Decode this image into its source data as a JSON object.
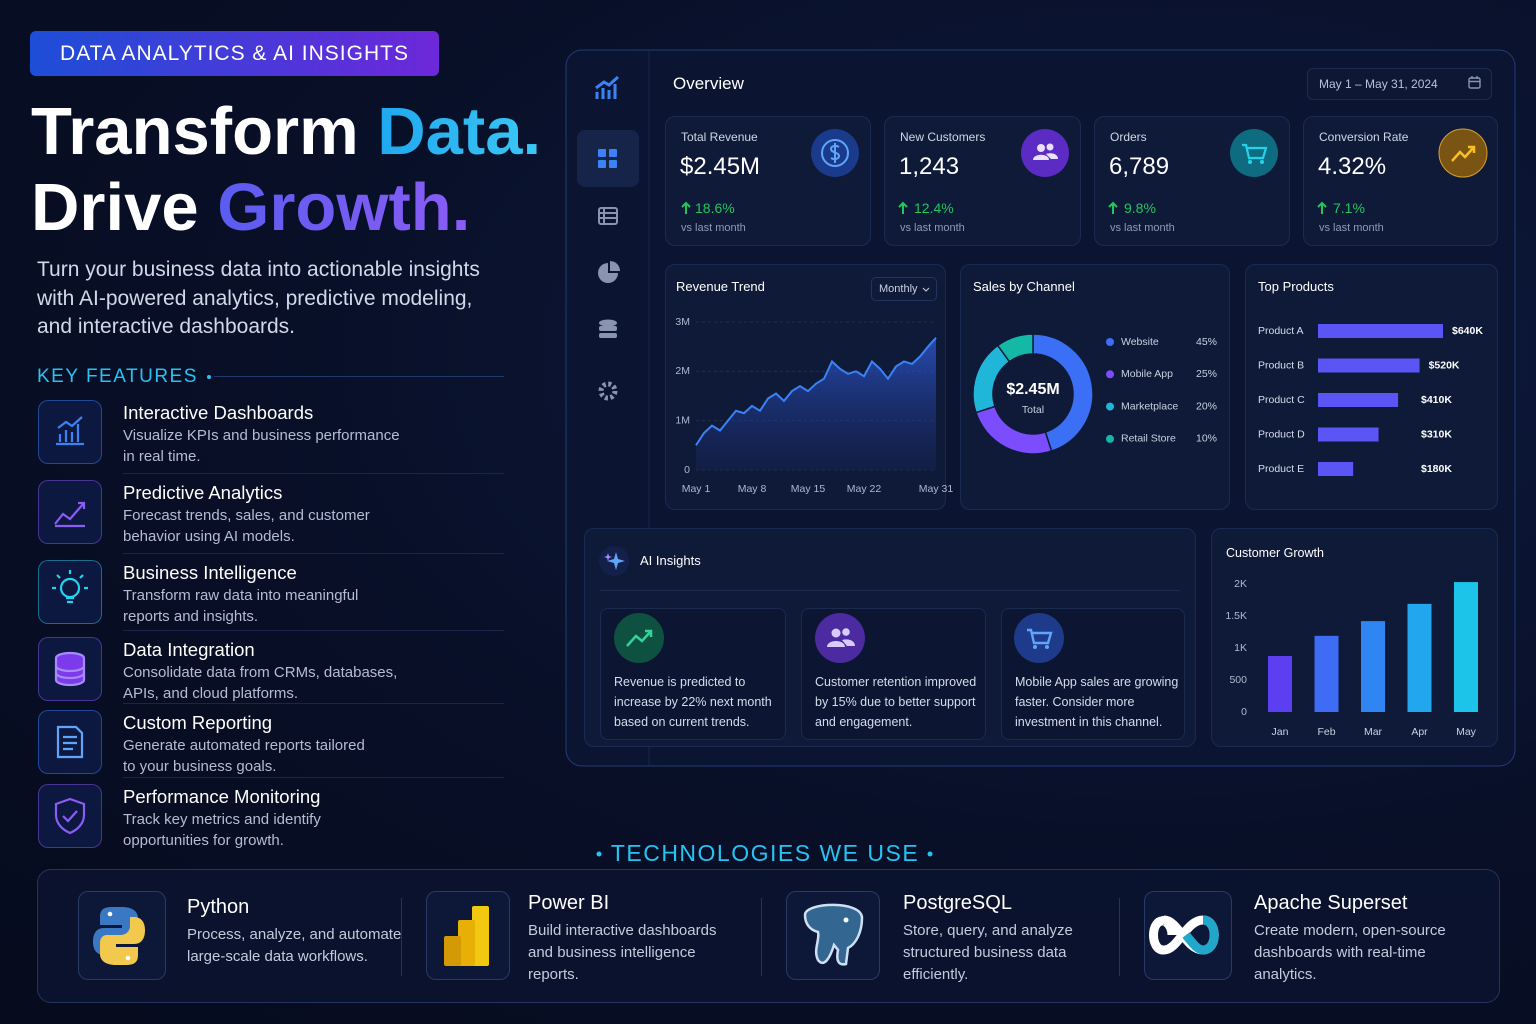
{
  "badge": "DATA ANALYTICS & AI INSIGHTS",
  "headline": {
    "line1": "Transform",
    "line1_accent": "Data.",
    "line2": "Drive",
    "line2_accent": "Growth."
  },
  "intro": [
    "Turn your business data into actionable insights",
    "with AI-powered analytics, predictive modeling,",
    "and interactive dashboards."
  ],
  "features_title": "KEY FEATURES",
  "features": [
    {
      "title": "Interactive Dashboards",
      "lines": [
        "Visualize KPIs and business performance",
        "in real time."
      ]
    },
    {
      "title": "Predictive Analytics",
      "lines": [
        "Forecast trends, sales, and customer",
        "behavior using AI models."
      ]
    },
    {
      "title": "Business Intelligence",
      "lines": [
        "Transform raw data into meaningful",
        "reports and insights."
      ]
    },
    {
      "title": "Data Integration",
      "lines": [
        "Consolidate data from CRMs, databases,",
        "APIs, and cloud platforms."
      ]
    },
    {
      "title": "Custom Reporting",
      "lines": [
        "Generate automated reports tailored",
        "to your business goals."
      ]
    },
    {
      "title": "Performance Monitoring",
      "lines": [
        "Track key metrics and identify",
        "opportunities for growth."
      ]
    }
  ],
  "dashboard": {
    "title": "Overview",
    "date_range": "May 1 – May 31, 2024",
    "kpis": [
      {
        "label": "Total Revenue",
        "value": "$2.45M",
        "change": "18.6%",
        "note": "vs last month"
      },
      {
        "label": "New Customers",
        "value": "1,243",
        "change": "12.4%",
        "note": "vs last month"
      },
      {
        "label": "Orders",
        "value": "6,789",
        "change": "9.8%",
        "note": "vs last month"
      },
      {
        "label": "Conversion Rate",
        "value": "4.32%",
        "change": "7.1%",
        "note": "vs last month"
      }
    ]
  },
  "ai_insights": {
    "title": "AI Insights",
    "items": [
      [
        "Revenue is predicted to",
        "increase by 22% next month",
        "based on current trends."
      ],
      [
        "Customer retention improved",
        "by 15% due to better support",
        "and engagement."
      ],
      [
        "Mobile App sales are growing",
        "faster. Consider more",
        "investment in this channel."
      ]
    ]
  },
  "tech_title": "TECHNOLOGIES WE USE",
  "technologies": [
    {
      "name": "Python",
      "lines": [
        "Process, analyze, and automate",
        "large-scale data workflows."
      ]
    },
    {
      "name": "Power BI",
      "lines": [
        "Build interactive dashboards",
        "and business intelligence",
        "reports."
      ]
    },
    {
      "name": "PostgreSQL",
      "lines": [
        "Store, query, and analyze",
        "structured business data",
        "efficiently."
      ]
    },
    {
      "name": "Apache Superset",
      "lines": [
        "Create modern, open-source",
        "dashboards with real-time",
        "analytics."
      ]
    }
  ],
  "chart_data": [
    {
      "type": "area",
      "title": "Revenue Trend",
      "control": "Monthly",
      "x": [
        1,
        2,
        3,
        4,
        5,
        6,
        7,
        8,
        9,
        10,
        11,
        12,
        13,
        14,
        15,
        16,
        17,
        18,
        19,
        20,
        21,
        22,
        23,
        24,
        25,
        26,
        27,
        28,
        29,
        30,
        31
      ],
      "values": [
        0.5,
        0.75,
        0.9,
        0.8,
        1.0,
        1.2,
        1.15,
        1.3,
        1.2,
        1.45,
        1.55,
        1.4,
        1.6,
        1.7,
        1.6,
        1.75,
        1.85,
        2.2,
        2.05,
        1.95,
        2.0,
        1.9,
        2.2,
        2.05,
        1.85,
        2.1,
        2.2,
        2.15,
        2.3,
        2.5,
        2.68
      ],
      "xlim": [
        1,
        31
      ],
      "xticks": [
        {
          "value": 1,
          "label": "May 1"
        },
        {
          "value": 8,
          "label": "May 8"
        },
        {
          "value": 15,
          "label": "May 15"
        },
        {
          "value": 22,
          "label": "May 22"
        },
        {
          "value": 31,
          "label": "May 31"
        }
      ],
      "ylim": [
        0,
        3
      ],
      "yticks": [
        0,
        {
          "value": 1,
          "label": "1M"
        },
        {
          "value": 2,
          "label": "2M"
        },
        {
          "value": 3,
          "label": "3M"
        }
      ],
      "color": "#3b82f6",
      "grid": true
    },
    {
      "type": "pie",
      "title": "Sales by Channel",
      "center_value": "$2.45M",
      "center_label": "Total",
      "categories": [
        "Website",
        "Mobile App",
        "Marketplace",
        "Retail Store"
      ],
      "values": [
        45,
        25,
        20,
        10
      ],
      "value_labels": [
        "45%",
        "25%",
        "20%",
        "10%"
      ],
      "colors": [
        "#3b6ff5",
        "#7c4dff",
        "#1fb6d9",
        "#14b8a6"
      ]
    },
    {
      "type": "hbar",
      "title": "Top Products",
      "categories": [
        "Product A",
        "Product B",
        "Product C",
        "Product D",
        "Product E"
      ],
      "values": [
        640,
        520,
        410,
        310,
        180
      ],
      "value_labels": [
        "$640K",
        "$520K",
        "$410K",
        "$310K",
        "$180K"
      ],
      "xlim": [
        0,
        640
      ],
      "color": "#5b55f6"
    },
    {
      "type": "bar",
      "title": "Customer Growth",
      "categories": [
        "Jan",
        "Feb",
        "Mar",
        "Apr",
        "May"
      ],
      "values": [
        875,
        1190,
        1420,
        1690,
        2030
      ],
      "ylim": [
        0,
        2050
      ],
      "yticks": [
        0,
        500,
        {
          "value": 1000,
          "label": "1K"
        },
        {
          "value": 1500,
          "label": "1.5K"
        },
        {
          "value": 2000,
          "label": "2K"
        }
      ],
      "colors": [
        "#5b3ff0",
        "#3f6cf5",
        "#2f86f3",
        "#22a6ee",
        "#1cc4ea"
      ]
    }
  ]
}
